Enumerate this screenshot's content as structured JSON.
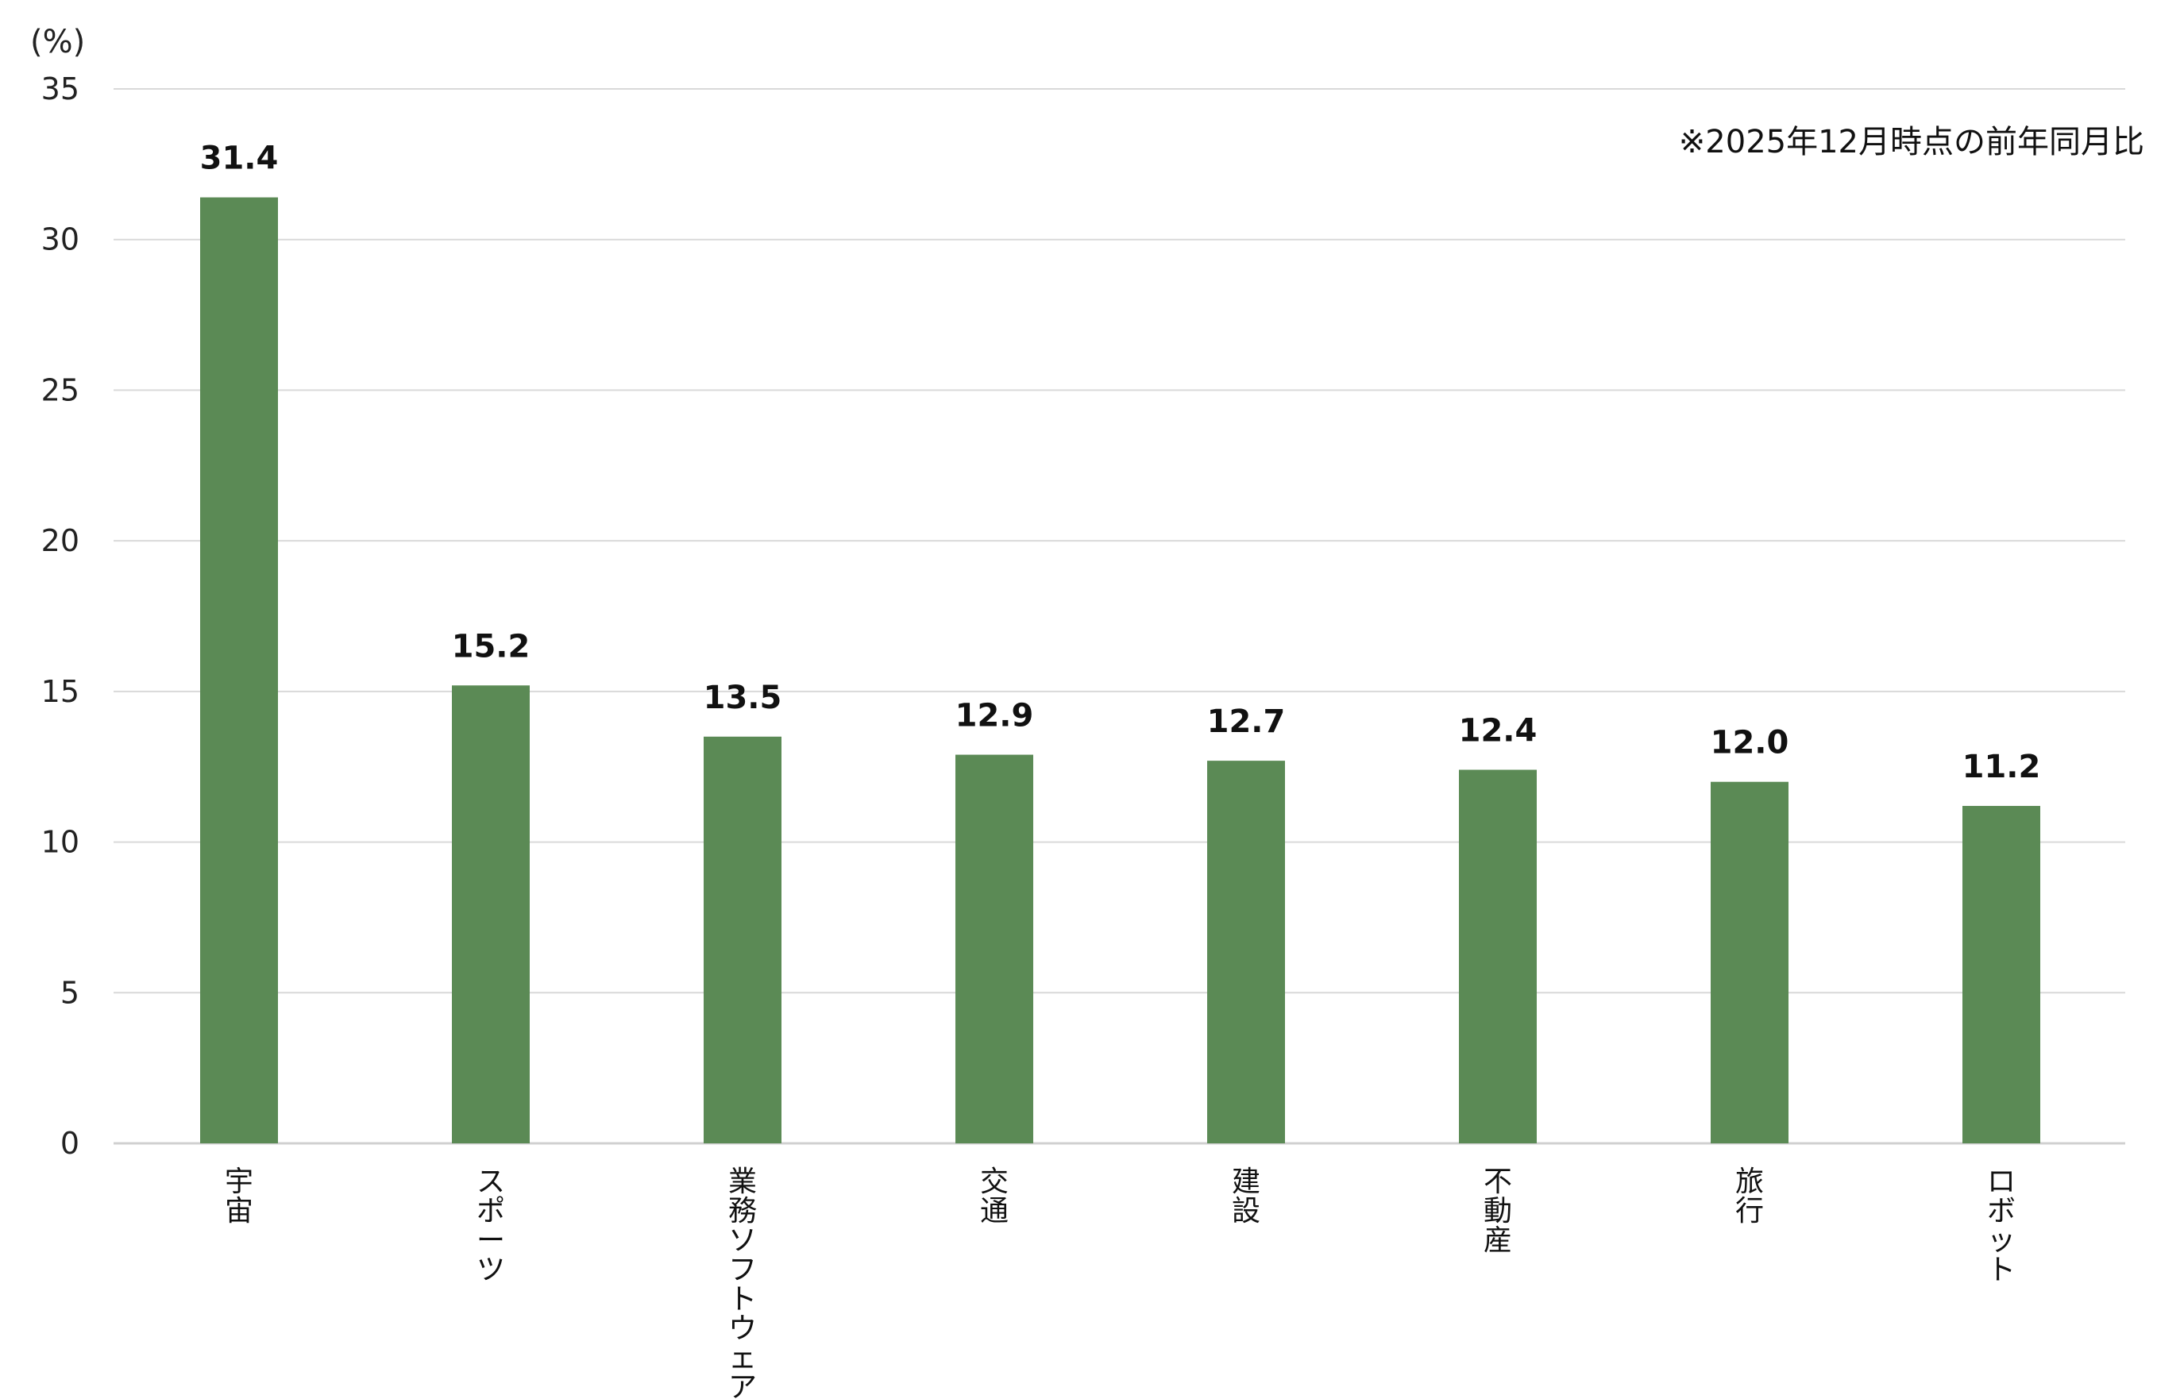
{
  "chart_data": {
    "type": "bar",
    "unit_label": "(%)",
    "note": "※2025年12月時点の前年同月比",
    "categories": [
      "宇宙",
      "スポーツ",
      "業務ソフトウェア",
      "交通",
      "建設",
      "不動産",
      "旅行",
      "ロボット"
    ],
    "values": [
      31.4,
      15.2,
      13.5,
      12.9,
      12.7,
      12.4,
      12.0,
      11.2
    ],
    "data_labels": [
      "31.4",
      "15.2",
      "13.5",
      "12.9",
      "12.7",
      "12.4",
      "12.0",
      "11.2"
    ],
    "yticks": [
      "0",
      "5",
      "10",
      "15",
      "20",
      "25",
      "30",
      "35"
    ],
    "ylim": [
      0,
      35
    ],
    "grid": true,
    "legend": "none",
    "bar_color": "#5b8a55",
    "grid_color": "#d9d9d9",
    "axis_color": "#d0d0d0"
  }
}
